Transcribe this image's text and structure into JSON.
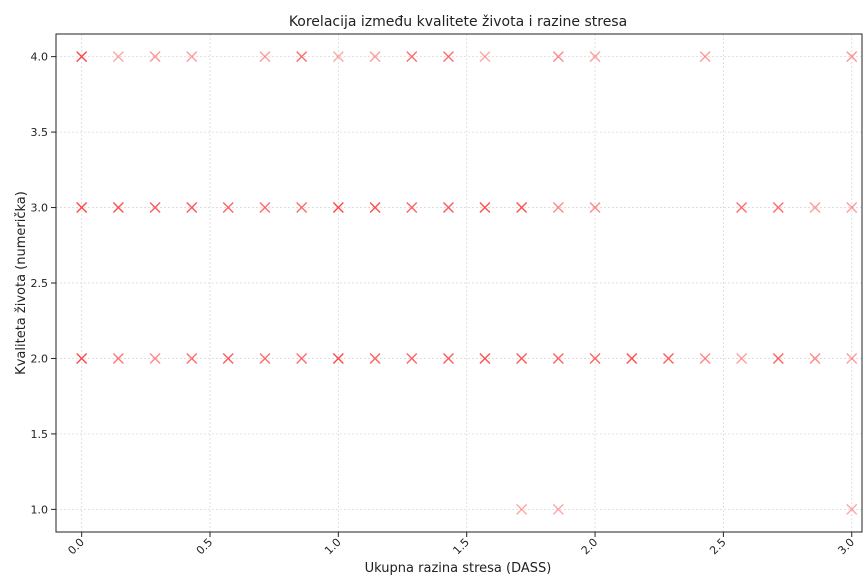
{
  "chart_data": {
    "type": "scatter",
    "title": "Korelacija između kvalitete života i razine stresa",
    "xlabel": "Ukupna razina stresa (DASS)",
    "ylabel": "Kvaliteta života (numerička)",
    "xlim": [
      -0.1,
      3.04
    ],
    "ylim": [
      0.85,
      4.15
    ],
    "xticks": [
      "0.0",
      "0.5",
      "1.0",
      "1.5",
      "2.0",
      "2.5",
      "3.0"
    ],
    "yticks": [
      "1.0",
      "1.5",
      "2.0",
      "2.5",
      "3.0",
      "3.5",
      "4.0"
    ],
    "grid": true,
    "marker": "x",
    "marker_color": "#ff3b3b",
    "series": [
      {
        "points": [
          [
            0.0,
            4
          ],
          [
            0.143,
            4
          ],
          [
            0.286,
            4
          ],
          [
            0.429,
            4
          ],
          [
            0.714,
            4
          ],
          [
            0.857,
            4
          ],
          [
            1.0,
            4
          ],
          [
            1.143,
            4
          ],
          [
            1.286,
            4
          ],
          [
            1.429,
            4
          ],
          [
            1.571,
            4
          ],
          [
            1.857,
            4
          ],
          [
            2.0,
            4
          ],
          [
            2.429,
            4
          ],
          [
            3.0,
            4
          ],
          [
            0.0,
            3
          ],
          [
            0.143,
            3
          ],
          [
            0.286,
            3
          ],
          [
            0.429,
            3
          ],
          [
            0.571,
            3
          ],
          [
            0.714,
            3
          ],
          [
            0.857,
            3
          ],
          [
            1.0,
            3
          ],
          [
            1.143,
            3
          ],
          [
            1.286,
            3
          ],
          [
            1.429,
            3
          ],
          [
            1.571,
            3
          ],
          [
            1.714,
            3
          ],
          [
            1.857,
            3
          ],
          [
            2.0,
            3
          ],
          [
            2.571,
            3
          ],
          [
            2.714,
            3
          ],
          [
            2.857,
            3
          ],
          [
            3.0,
            3
          ],
          [
            0.0,
            2
          ],
          [
            0.143,
            2
          ],
          [
            0.286,
            2
          ],
          [
            0.429,
            2
          ],
          [
            0.571,
            2
          ],
          [
            0.714,
            2
          ],
          [
            0.857,
            2
          ],
          [
            1.0,
            2
          ],
          [
            1.143,
            2
          ],
          [
            1.286,
            2
          ],
          [
            1.429,
            2
          ],
          [
            1.571,
            2
          ],
          [
            1.714,
            2
          ],
          [
            1.857,
            2
          ],
          [
            2.0,
            2
          ],
          [
            2.143,
            2
          ],
          [
            2.286,
            2
          ],
          [
            2.429,
            2
          ],
          [
            2.571,
            2
          ],
          [
            2.714,
            2
          ],
          [
            2.857,
            2
          ],
          [
            3.0,
            2
          ],
          [
            1.714,
            1
          ],
          [
            1.857,
            1
          ],
          [
            3.0,
            1
          ]
        ],
        "opacity": [
          0.95,
          0.45,
          0.55,
          0.5,
          0.5,
          0.75,
          0.45,
          0.5,
          0.75,
          0.75,
          0.45,
          0.6,
          0.5,
          0.5,
          0.55,
          0.95,
          0.9,
          0.85,
          0.85,
          0.8,
          0.75,
          0.75,
          0.95,
          0.9,
          0.8,
          0.85,
          0.9,
          0.9,
          0.6,
          0.6,
          0.75,
          0.75,
          0.5,
          0.5,
          0.95,
          0.7,
          0.6,
          0.75,
          0.85,
          0.75,
          0.75,
          0.95,
          0.8,
          0.8,
          0.85,
          0.9,
          0.85,
          0.8,
          0.8,
          0.9,
          0.85,
          0.6,
          0.5,
          0.8,
          0.6,
          0.5,
          0.45,
          0.45,
          0.45
        ]
      }
    ]
  }
}
